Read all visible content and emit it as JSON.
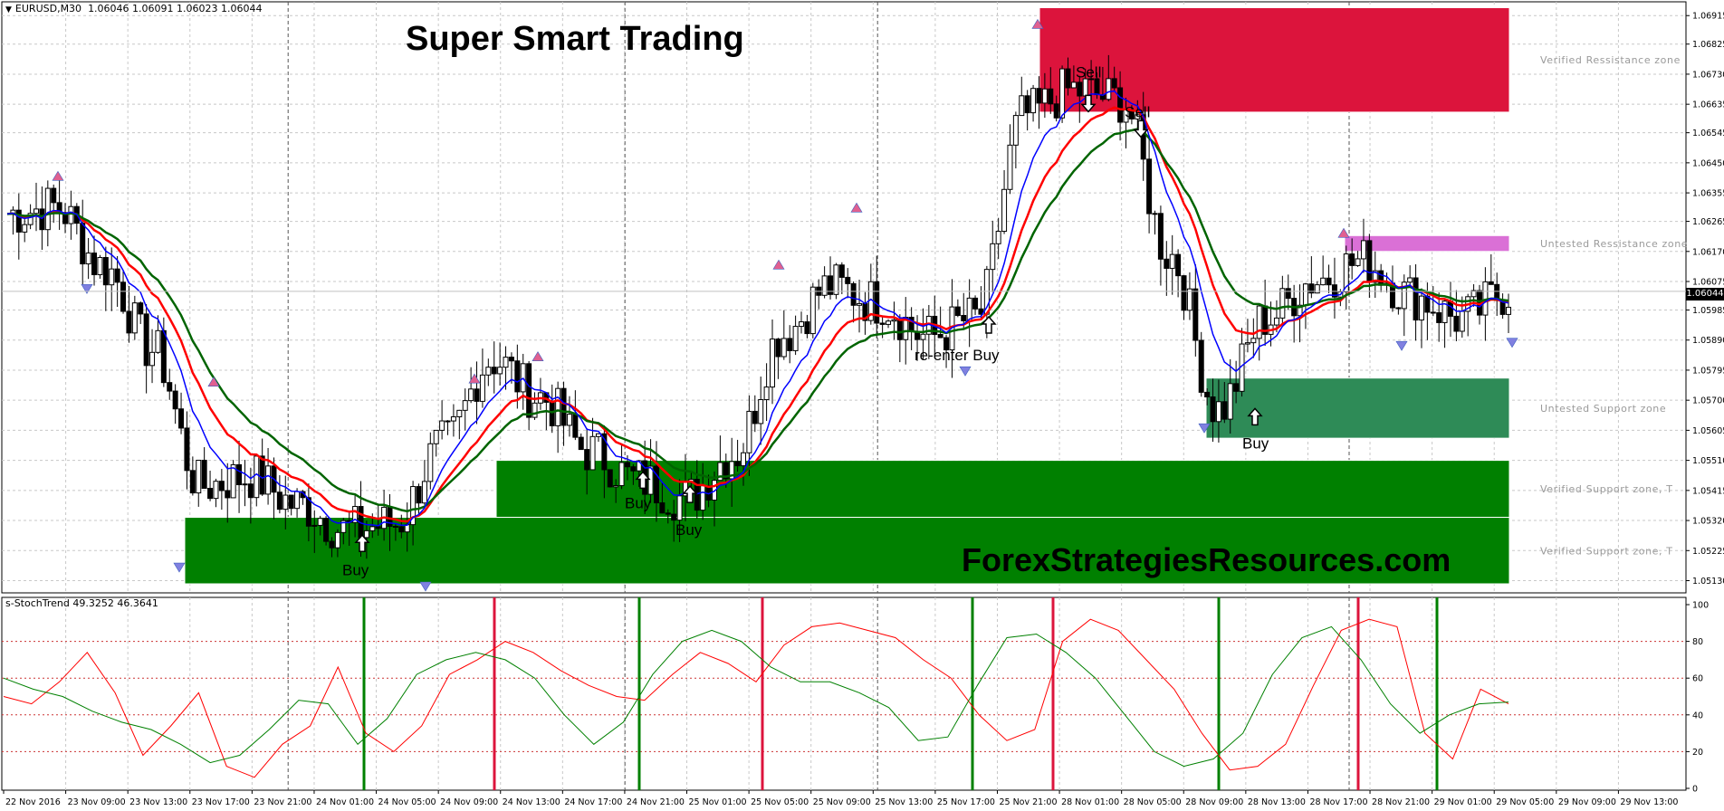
{
  "main_chart": {
    "header": {
      "icon": "triangle-down-icon",
      "symbol": "EURUSD,M30",
      "ohlc": "1.06046 1.06091 1.06023 1.06044"
    },
    "overlay_title": "Super Smart Trading",
    "watermark": "ForexStrategiesResources.com",
    "current_price_label": "1.06044",
    "price_axis_labels": [
      "1.06915",
      "1.06825",
      "1.06730",
      "1.06635",
      "1.06545",
      "1.06450",
      "1.06355",
      "1.06265",
      "1.06170",
      "1.06075",
      "1.05985",
      "1.05890",
      "1.05795",
      "1.05700",
      "1.05605",
      "1.05510",
      "1.05415",
      "1.05320",
      "1.05225",
      "1.05130"
    ]
  },
  "sub_window": {
    "header": "s-StochTrend 49.3252 46.3641",
    "axis_labels": [
      "100",
      "80",
      "60",
      "40",
      "20",
      "0"
    ]
  },
  "time_axis_labels": [
    "22 Nov 2016",
    "23 Nov 09:00",
    "23 Nov 13:00",
    "23 Nov 17:00",
    "23 Nov 21:00",
    "24 Nov 01:00",
    "24 Nov 05:00",
    "24 Nov 09:00",
    "24 Nov 13:00",
    "24 Nov 17:00",
    "24 Nov 21:00",
    "25 Nov 01:00",
    "25 Nov 05:00",
    "25 Nov 09:00",
    "25 Nov 13:00",
    "25 Nov 17:00",
    "25 Nov 21:00",
    "28 Nov 01:00",
    "28 Nov 05:00",
    "28 Nov 09:00",
    "28 Nov 13:00",
    "28 Nov 17:00",
    "28 Nov 21:00",
    "29 Nov 01:00",
    "29 Nov 05:00",
    "29 Nov 09:00",
    "29 Nov 13:00"
  ],
  "chart_data": [
    {
      "type": "candlestick",
      "title": "EURUSD,M30",
      "ylim": [
        1.051,
        1.0695
      ],
      "grid": true,
      "x": [
        "22 Nov 2016",
        "23 Nov 09:00",
        "23 Nov 13:00",
        "23 Nov 17:00",
        "23 Nov 21:00",
        "24 Nov 01:00",
        "24 Nov 05:00",
        "24 Nov 09:00",
        "24 Nov 13:00",
        "24 Nov 17:00",
        "24 Nov 21:00",
        "25 Nov 01:00",
        "25 Nov 05:00",
        "25 Nov 09:00",
        "25 Nov 13:00",
        "25 Nov 17:00",
        "25 Nov 21:00",
        "28 Nov 01:00",
        "28 Nov 05:00",
        "28 Nov 09:00",
        "28 Nov 13:00",
        "28 Nov 17:00",
        "28 Nov 21:00",
        "29 Nov 01:00",
        "29 Nov 05:00",
        "29 Nov 09:00",
        "29 Nov 13:00"
      ],
      "close_path": [
        1.0629,
        1.0631,
        1.0612,
        1.0586,
        1.0543,
        1.0546,
        1.0537,
        1.0529,
        1.0531,
        1.0556,
        1.0583,
        1.0571,
        1.0554,
        1.0545,
        1.0539,
        1.0553,
        1.0591,
        1.0606,
        1.0601,
        1.059,
        1.0596,
        1.066,
        1.0668,
        1.0665,
        1.0616,
        1.0567,
        1.0596,
        1.0608,
        1.0614,
        1.0603,
        1.0596,
        1.0604
      ],
      "series": [
        {
          "name": "",
          "color": "#ff0000"
        },
        {
          "name": "",
          "color": "#006400"
        },
        {
          "name": "",
          "color": "#0000ff"
        }
      ],
      "zones": [
        {
          "label": "Verified Ressistance zone",
          "from": 1.0661,
          "to": 1.0694,
          "color": "#dc143c"
        },
        {
          "label": "Untested Ressistance zone",
          "from": 1.0617,
          "to": 1.0622,
          "color": "#da70d6"
        },
        {
          "label": "Untested Support zone",
          "from": 1.0558,
          "to": 1.0577,
          "color": "#2e8b57"
        },
        {
          "label": "Verified Support zone, T",
          "from": 1.0533,
          "to": 1.0551,
          "color": "#008000"
        },
        {
          "label": "Verified Support zone, T",
          "from": 1.0512,
          "to": 1.0533,
          "color": "#008000"
        }
      ],
      "signals": [
        {
          "label": "Buy",
          "type": "buy"
        },
        {
          "label": "Buy",
          "type": "buy"
        },
        {
          "label": "Buy",
          "type": "buy"
        },
        {
          "label": "re-enter Buy",
          "type": "buy"
        },
        {
          "label": "Sell",
          "type": "sell"
        },
        {
          "label": "Sell",
          "type": "sell"
        },
        {
          "label": "Buy",
          "type": "buy"
        }
      ]
    },
    {
      "type": "line",
      "title": "s-StochTrend 49.3252 46.3641",
      "ylim": [
        0,
        100
      ],
      "levels": [
        20,
        40,
        60,
        80
      ],
      "series": [
        {
          "name": "",
          "color": "#ff0000",
          "values": [
            50,
            46,
            58,
            74,
            52,
            18,
            34,
            52,
            12,
            6,
            24,
            34,
            66,
            30,
            20,
            34,
            62,
            70,
            80,
            74,
            64,
            56,
            50,
            48,
            62,
            74,
            68,
            58,
            78,
            88,
            90,
            86,
            82,
            70,
            60,
            40,
            26,
            32,
            80,
            92,
            86,
            70,
            54,
            30,
            10,
            12,
            24,
            56,
            86,
            92,
            88,
            30,
            16,
            54,
            46
          ]
        },
        {
          "name": "",
          "color": "#008000",
          "values": [
            60,
            54,
            50,
            42,
            36,
            32,
            24,
            14,
            18,
            32,
            48,
            46,
            24,
            38,
            62,
            70,
            74,
            70,
            60,
            40,
            24,
            36,
            62,
            80,
            86,
            80,
            66,
            58,
            58,
            52,
            44,
            26,
            28,
            56,
            82,
            84,
            74,
            60,
            40,
            20,
            12,
            16,
            30,
            62,
            82,
            88,
            70,
            46,
            30,
            40,
            46,
            47
          ]
        }
      ]
    }
  ]
}
